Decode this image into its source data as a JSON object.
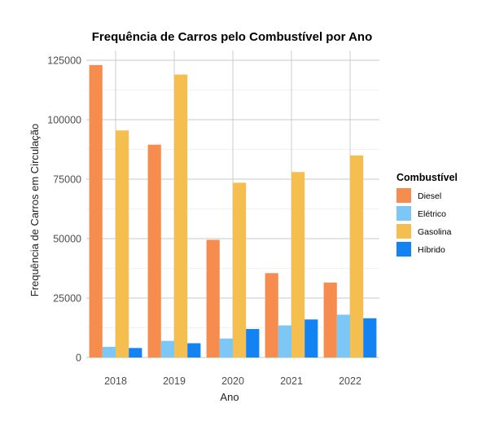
{
  "chart_data": {
    "type": "bar",
    "title": "Frequência de Carros pelo Combustível por Ano",
    "xlabel": "Ano",
    "ylabel": "Frequência de Carros em Circulação",
    "categories": [
      "2018",
      "2019",
      "2020",
      "2021",
      "2022"
    ],
    "ylim": [
      0,
      130000
    ],
    "yticks": [
      0,
      25000,
      50000,
      75000,
      100000,
      125000
    ],
    "grid": true,
    "legend": {
      "title": "Combustível",
      "position": "right"
    },
    "series": [
      {
        "name": "Diesel",
        "color": "#F68C4E",
        "values": [
          123000,
          89500,
          49500,
          35500,
          31500
        ]
      },
      {
        "name": "Elétrico",
        "color": "#7CC7F5",
        "values": [
          4500,
          7000,
          8000,
          13500,
          18000
        ]
      },
      {
        "name": "Gasolina",
        "color": "#F4BF4F",
        "values": [
          95500,
          119000,
          73500,
          78000,
          85000
        ]
      },
      {
        "name": "Híbrido",
        "color": "#1383F4",
        "values": [
          4000,
          6000,
          12000,
          16000,
          16500
        ]
      }
    ]
  }
}
